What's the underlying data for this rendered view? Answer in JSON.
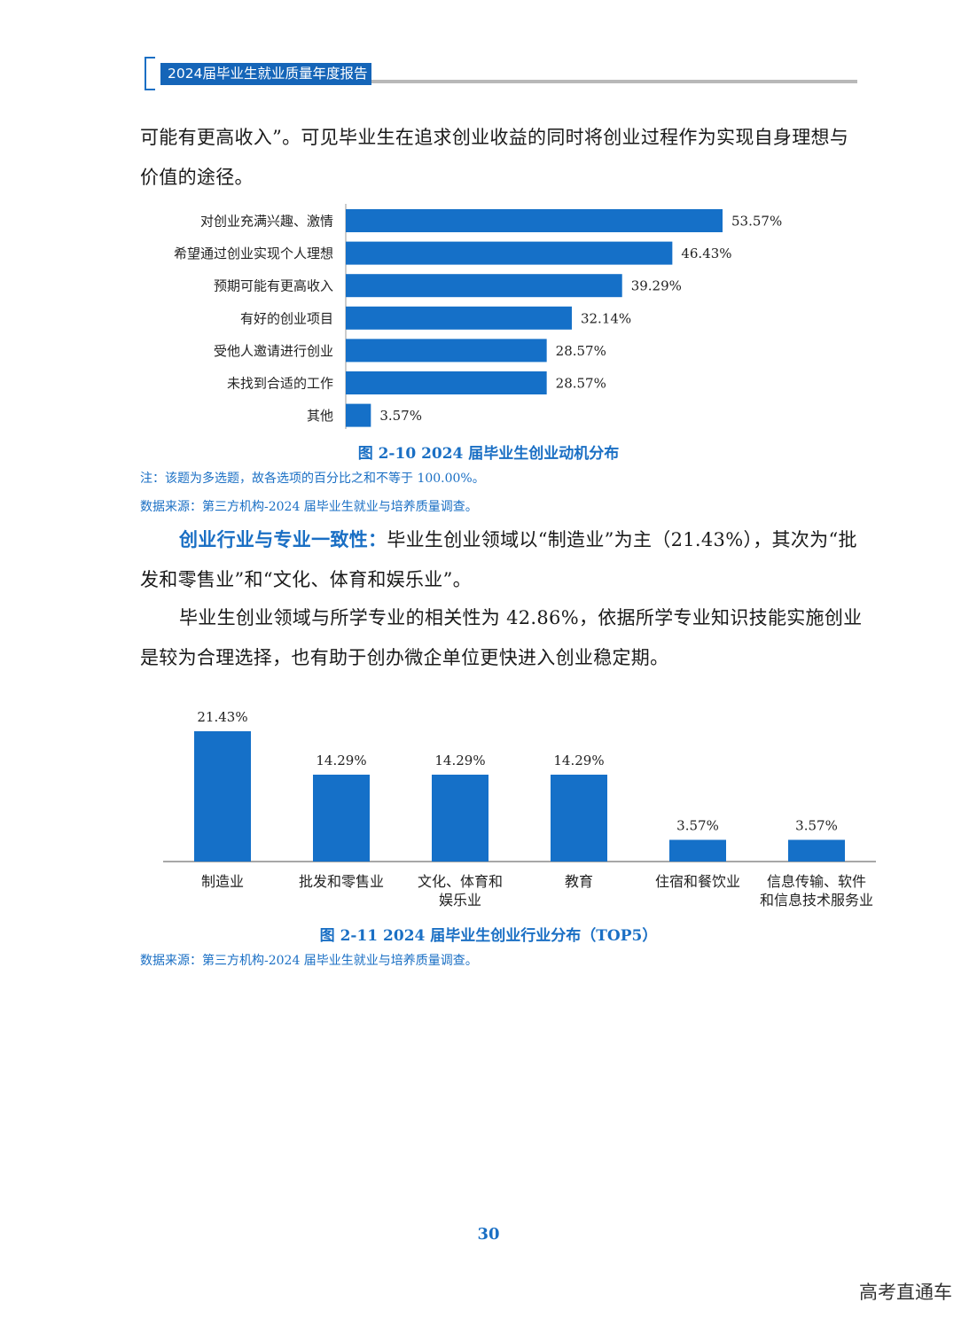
{
  "header": {
    "title": "2024届毕业生就业质量年度报告"
  },
  "paragraphs": {
    "p1": "可能有更高收入”。可见毕业生在追求创业收益的同时将创业过程作为实现自身理想与价值的途径。",
    "p2_heading": "创业行业与专业一致性：",
    "p2_body": "毕业生创业领域以“制造业”为主（21.43%），其次为“批发和零售业”和“文化、体育和娱乐业”。",
    "p3": "毕业生创业领域与所学专业的相关性为 42.86%，依据所学专业知识技能实施创业是较为合理选择，也有助于创办微企单位更快进入创业稳定期。"
  },
  "figure1": {
    "title": "图 2-10  2024 届毕业生创业动机分布",
    "note": "注：该题为多选题，故各选项的百分比之和不等于 100.00%。",
    "source": "数据来源：第三方机构-2024 届毕业生就业与培养质量调查。"
  },
  "figure2": {
    "title": "图 2-11   2024 届毕业生创业行业分布（TOP5）",
    "source": "数据来源：第三方机构-2024 届毕业生就业与培养质量调查。"
  },
  "chart_data": [
    {
      "type": "bar",
      "orientation": "horizontal",
      "categories": [
        "对创业充满兴趣、激情",
        "希望通过创业实现个人理想",
        "预期可能有更高收入",
        "有好的创业项目",
        "受他人邀请进行创业",
        "未找到合适的工作",
        "其他"
      ],
      "values": [
        53.57,
        46.43,
        39.29,
        32.14,
        28.57,
        28.57,
        3.57
      ],
      "labels": [
        "53.57%",
        "46.43%",
        "39.29%",
        "32.14%",
        "28.57%",
        "28.57%",
        "3.57%"
      ],
      "title": "图 2-10  2024 届毕业生创业动机分布",
      "color": "#1570c8",
      "xlim": [
        0,
        60
      ]
    },
    {
      "type": "bar",
      "orientation": "vertical",
      "categories": [
        [
          "制造业"
        ],
        [
          "批发和零售业"
        ],
        [
          "文化、体育和",
          "娱乐业"
        ],
        [
          "教育"
        ],
        [
          "住宿和餐饮业"
        ],
        [
          "信息传输、软件",
          "和信息技术服务业"
        ]
      ],
      "values": [
        21.43,
        14.29,
        14.29,
        14.29,
        3.57,
        3.57
      ],
      "labels": [
        "21.43%",
        "14.29%",
        "14.29%",
        "14.29%",
        "3.57%",
        "3.57%"
      ],
      "title": "图 2-11   2024 届毕业生创业行业分布（TOP5）",
      "color": "#1570c8",
      "ylim": [
        0,
        25
      ]
    }
  ],
  "page_number": "30",
  "watermark": "高考直通车"
}
